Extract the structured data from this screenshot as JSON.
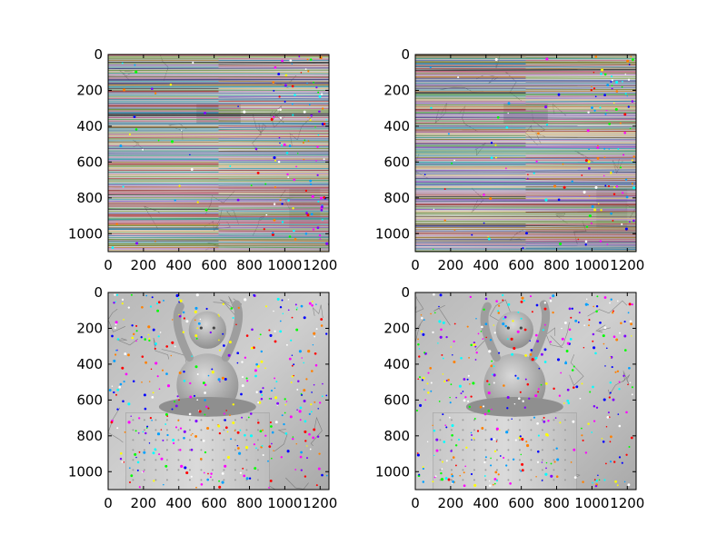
{
  "figure": {
    "background": "#ffffff",
    "layout": "2x2 grid of image panels sharing the same axes"
  },
  "chart_data": [
    {
      "type": "image",
      "panel": "top-left",
      "content": "grayscale photo overlaid with dense horizontal coloured lines (epipolar lines) and small coloured feature points",
      "xlim": [
        0,
        1250
      ],
      "ylim": [
        1100,
        0
      ],
      "xticks": [
        0,
        200,
        400,
        600,
        800,
        1000,
        1200
      ],
      "xtick_labels": [
        "0",
        "200",
        "400",
        "600",
        "800",
        "1000",
        "1200"
      ],
      "yticks": [
        0,
        200,
        400,
        600,
        800,
        1000
      ],
      "ytick_labels": [
        "0",
        "200",
        "400",
        "600",
        "800",
        "1000"
      ],
      "grid": false
    },
    {
      "type": "image",
      "panel": "top-right",
      "content": "grayscale photo overlaid with dense horizontal coloured lines (epipolar lines) and small coloured feature points",
      "xlim": [
        0,
        1250
      ],
      "ylim": [
        1100,
        0
      ],
      "xticks": [
        0,
        200,
        400,
        600,
        800,
        1000,
        1200
      ],
      "xtick_labels": [
        "0",
        "200",
        "400",
        "600",
        "800",
        "1000",
        "1200"
      ],
      "yticks": [
        0,
        200,
        400,
        600,
        800,
        1000
      ],
      "ytick_labels": [
        "0",
        "200",
        "400",
        "600",
        "800",
        "1000"
      ],
      "grid": false
    },
    {
      "type": "image",
      "panel": "bottom-left",
      "content": "grayscale photo of a baby doll with raised arms sitting on a box, scattered coloured feature points",
      "xlim": [
        0,
        1250
      ],
      "ylim": [
        1100,
        0
      ],
      "xticks": [
        0,
        200,
        400,
        600,
        800,
        1000,
        1200
      ],
      "xtick_labels": [
        "0",
        "200",
        "400",
        "600",
        "800",
        "1000",
        "1200"
      ],
      "yticks": [
        0,
        200,
        400,
        600,
        800,
        1000
      ],
      "ytick_labels": [
        "0",
        "200",
        "400",
        "600",
        "800",
        "1000"
      ],
      "grid": false
    },
    {
      "type": "image",
      "panel": "bottom-right",
      "content": "grayscale photo of a baby doll with raised arms sitting on a box, scattered coloured feature points",
      "xlim": [
        0,
        1250
      ],
      "ylim": [
        1100,
        0
      ],
      "xticks": [
        0,
        200,
        400,
        600,
        800,
        1000,
        1200
      ],
      "xtick_labels": [
        "0",
        "200",
        "400",
        "600",
        "800",
        "1000",
        "1200"
      ],
      "yticks": [
        0,
        200,
        400,
        600,
        800,
        1000
      ],
      "ytick_labels": [
        "0",
        "200",
        "400",
        "600",
        "800",
        "1000"
      ],
      "grid": false
    }
  ]
}
